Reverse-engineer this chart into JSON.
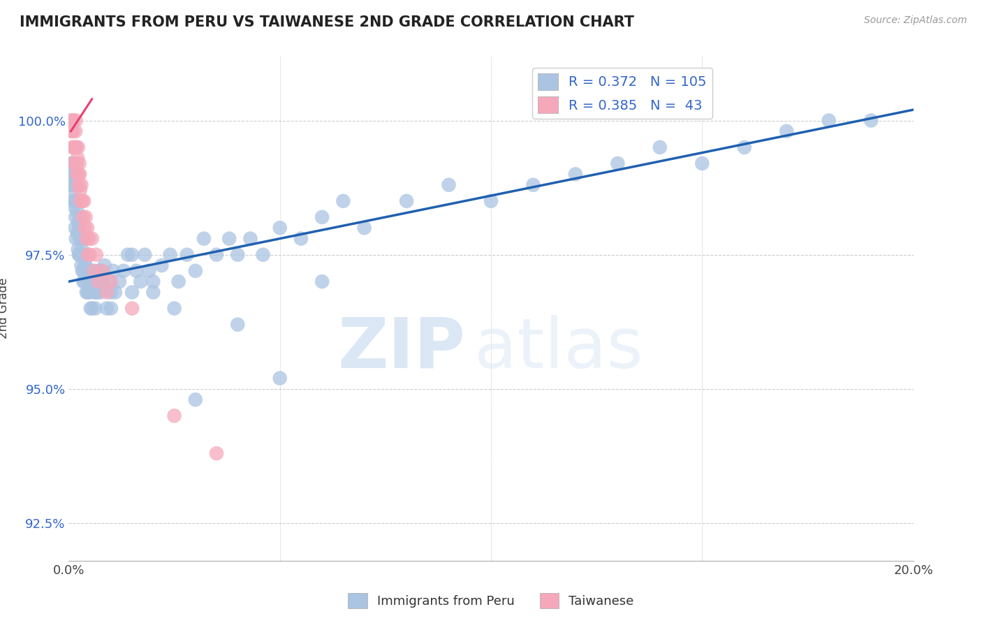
{
  "title": "IMMIGRANTS FROM PERU VS TAIWANESE 2ND GRADE CORRELATION CHART",
  "source": "Source: ZipAtlas.com",
  "ylabel": "2nd Grade",
  "xlim": [
    0.0,
    20.0
  ],
  "ylim": [
    91.8,
    101.2
  ],
  "yticks": [
    92.5,
    95.0,
    97.5,
    100.0
  ],
  "ytick_labels": [
    "92.5%",
    "95.0%",
    "97.5%",
    "100.0%"
  ],
  "blue_R": 0.372,
  "blue_N": 105,
  "pink_R": 0.385,
  "pink_N": 43,
  "blue_color": "#aac4e2",
  "pink_color": "#f5a8ba",
  "blue_line_color": "#2060b0",
  "pink_line_color": "#e84070",
  "legend_blue_label": "Immigrants from Peru",
  "legend_pink_label": "Taiwanese",
  "watermark_zip": "ZIP",
  "watermark_atlas": "atlas",
  "blue_line_x0": 0.0,
  "blue_line_y0": 97.0,
  "blue_line_x1": 20.0,
  "blue_line_y1": 100.2,
  "pink_line_x0": 0.05,
  "pink_line_y0": 99.8,
  "pink_line_x1": 0.55,
  "pink_line_y1": 100.4,
  "blue_points_x": [
    0.05,
    0.07,
    0.08,
    0.09,
    0.1,
    0.11,
    0.12,
    0.13,
    0.14,
    0.15,
    0.16,
    0.17,
    0.18,
    0.19,
    0.2,
    0.21,
    0.22,
    0.23,
    0.24,
    0.25,
    0.26,
    0.27,
    0.28,
    0.29,
    0.3,
    0.31,
    0.32,
    0.33,
    0.34,
    0.35,
    0.36,
    0.38,
    0.4,
    0.42,
    0.44,
    0.46,
    0.48,
    0.5,
    0.52,
    0.55,
    0.58,
    0.6,
    0.63,
    0.66,
    0.7,
    0.75,
    0.8,
    0.85,
    0.9,
    0.95,
    1.0,
    1.05,
    1.1,
    1.2,
    1.3,
    1.4,
    1.5,
    1.6,
    1.7,
    1.8,
    1.9,
    2.0,
    2.2,
    2.4,
    2.6,
    2.8,
    3.0,
    3.2,
    3.5,
    3.8,
    4.0,
    4.3,
    4.6,
    5.0,
    5.5,
    6.0,
    6.5,
    7.0,
    8.0,
    9.0,
    10.0,
    11.0,
    12.0,
    13.0,
    14.0,
    15.0,
    16.0,
    17.0,
    18.0,
    19.0,
    0.15,
    0.25,
    0.35,
    0.45,
    0.55,
    0.65,
    0.75,
    1.0,
    1.5,
    2.0,
    2.5,
    3.0,
    4.0,
    5.0,
    6.0
  ],
  "blue_points_y": [
    99.2,
    98.8,
    99.0,
    98.5,
    98.8,
    99.2,
    98.4,
    98.7,
    99.0,
    98.5,
    98.2,
    97.8,
    98.5,
    98.8,
    98.3,
    97.9,
    97.6,
    98.1,
    97.5,
    98.0,
    97.8,
    98.2,
    97.5,
    97.8,
    97.3,
    97.6,
    97.2,
    97.5,
    97.8,
    97.2,
    97.0,
    97.4,
    97.3,
    96.8,
    97.2,
    97.0,
    96.8,
    97.0,
    96.5,
    97.2,
    96.8,
    97.0,
    96.5,
    96.8,
    97.2,
    96.8,
    97.0,
    97.3,
    96.5,
    97.0,
    96.8,
    97.2,
    96.8,
    97.0,
    97.2,
    97.5,
    96.8,
    97.2,
    97.0,
    97.5,
    97.2,
    97.0,
    97.3,
    97.5,
    97.0,
    97.5,
    97.2,
    97.8,
    97.5,
    97.8,
    97.5,
    97.8,
    97.5,
    98.0,
    97.8,
    98.2,
    98.5,
    98.0,
    98.5,
    98.8,
    98.5,
    98.8,
    99.0,
    99.2,
    99.5,
    99.2,
    99.5,
    99.8,
    100.0,
    100.0,
    98.0,
    97.5,
    97.0,
    96.8,
    96.5,
    96.8,
    97.2,
    96.5,
    97.5,
    96.8,
    96.5,
    94.8,
    96.2,
    95.2,
    97.0
  ],
  "pink_points_x": [
    0.05,
    0.07,
    0.08,
    0.09,
    0.1,
    0.11,
    0.12,
    0.13,
    0.15,
    0.16,
    0.17,
    0.18,
    0.19,
    0.2,
    0.21,
    0.22,
    0.23,
    0.24,
    0.25,
    0.26,
    0.27,
    0.28,
    0.3,
    0.32,
    0.34,
    0.36,
    0.38,
    0.4,
    0.42,
    0.44,
    0.46,
    0.48,
    0.5,
    0.55,
    0.6,
    0.65,
    0.7,
    0.8,
    0.9,
    1.0,
    1.5,
    2.5,
    3.5
  ],
  "pink_points_y": [
    100.0,
    99.8,
    100.0,
    99.5,
    99.8,
    100.0,
    99.5,
    99.2,
    99.5,
    99.8,
    100.0,
    99.5,
    99.2,
    99.0,
    99.3,
    99.5,
    99.0,
    98.8,
    99.2,
    99.0,
    98.7,
    98.5,
    98.8,
    98.5,
    98.2,
    98.5,
    98.0,
    98.2,
    97.8,
    98.0,
    97.5,
    97.8,
    97.5,
    97.8,
    97.2,
    97.5,
    97.0,
    97.2,
    96.8,
    97.0,
    96.5,
    94.5,
    93.8
  ]
}
